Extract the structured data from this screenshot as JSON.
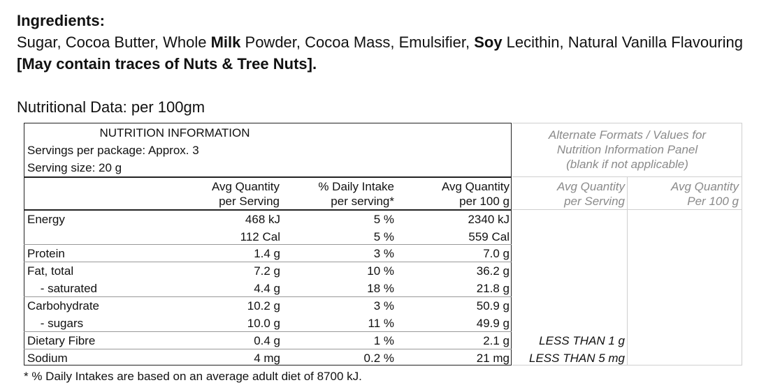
{
  "ingredients": {
    "heading": "Ingredients:",
    "text_parts": [
      {
        "text": "Sugar, Cocoa Butter, Whole ",
        "bold": false
      },
      {
        "text": "Milk",
        "bold": true
      },
      {
        "text": " Powder, Cocoa Mass, Emulsifier, ",
        "bold": false
      },
      {
        "text": "Soy",
        "bold": true
      },
      {
        "text": " Lecithin, Natural Vanilla Flavouring ",
        "bold": false
      },
      {
        "text": "[May contain traces of Nuts & Tree Nuts].",
        "bold": true
      }
    ]
  },
  "nutritional_title": "Nutritional Data: per 100gm",
  "panel": {
    "title": "NUTRITION INFORMATION",
    "servings_per_package": "Servings per package: Approx. 3",
    "serving_size": "Serving size: 20 g",
    "col_headers": {
      "avg_serving_1": "Avg Quantity",
      "avg_serving_2": "per Serving",
      "daily_1": "% Daily Intake",
      "daily_2": "per serving*",
      "avg_100_1": "Avg Quantity",
      "avg_100_2": "per 100 g"
    },
    "rows": [
      {
        "name": "Energy",
        "per_serving": "468 kJ",
        "daily": "5 %",
        "per_100": "2340 kJ"
      },
      {
        "name": "",
        "per_serving": "112 Cal",
        "daily": "5 %",
        "per_100": "559 Cal"
      },
      {
        "name": "Protein",
        "per_serving": "1.4 g",
        "daily": "3 %",
        "per_100": "7.0 g"
      },
      {
        "name": "Fat, total",
        "per_serving": "7.2 g",
        "daily": "10 %",
        "per_100": "36.2 g"
      },
      {
        "name": " - saturated",
        "per_serving": "4.4 g",
        "daily": "18 %",
        "per_100": "21.8 g"
      },
      {
        "name": "Carbohydrate",
        "per_serving": "10.2 g",
        "daily": "3 %",
        "per_100": "50.9 g"
      },
      {
        "name": " - sugars",
        "per_serving": "10.0 g",
        "daily": "11 %",
        "per_100": "49.9 g"
      },
      {
        "name": "Dietary Fibre",
        "per_serving": "0.4 g",
        "daily": "1 %",
        "per_100": "2.1 g"
      },
      {
        "name": "Sodium",
        "per_serving": "4 mg",
        "daily": "0.2 %",
        "per_100": "21 mg"
      }
    ],
    "alternate": {
      "title_1": "Alternate Formats / Values for",
      "title_2": "Nutrition Information Panel",
      "title_3": "(blank if not applicable)",
      "col1_1": "Avg Quantity",
      "col1_2": "per Serving",
      "col2_1": "Avg Quantity",
      "col2_2": "Per 100 g",
      "fibre_value": "LESS THAN 1 g",
      "sodium_value": "LESS THAN 5 mg"
    }
  },
  "footnote": "* % Daily Intakes are based on an average adult diet of 8700 kJ."
}
